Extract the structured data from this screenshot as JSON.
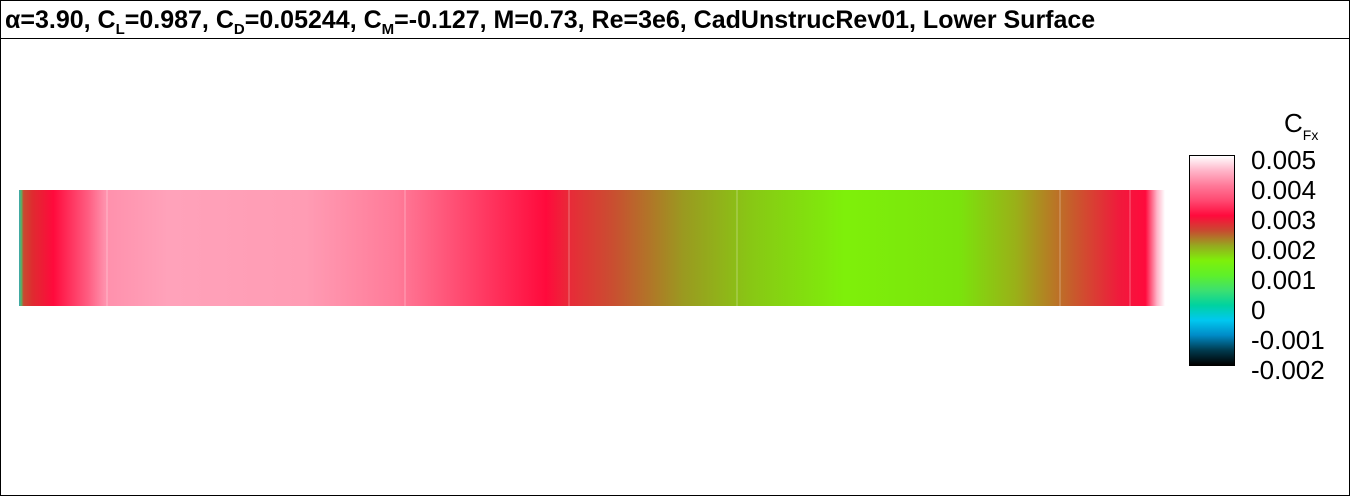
{
  "title": {
    "alpha_symbol": "α",
    "alpha_value": "=3.90, ",
    "cl_main": "C",
    "cl_sub": "L",
    "cl_value": "=0.987, ",
    "cd_main": "C",
    "cd_sub": "D",
    "cd_value": "=0.05244, ",
    "cm_main": "C",
    "cm_sub": "M",
    "cm_value": "=-0.127, M=0.73, Re=3e6, CadUnstrucRev01, Lower Surface"
  },
  "legend": {
    "title_main": "C",
    "title_sub": "Fx",
    "ticks": [
      "0.005",
      "0.004",
      "0.003",
      "0.002",
      "0.001",
      "0",
      "-0.001",
      "-0.002"
    ]
  },
  "colormap": {
    "stops": [
      {
        "value": -0.002,
        "color": "#000000"
      },
      {
        "value": -0.0015,
        "color": "#003c50"
      },
      {
        "value": -0.001,
        "color": "#008cc8"
      },
      {
        "value": -0.0005,
        "color": "#00c8f0"
      },
      {
        "value": 0.0,
        "color": "#00d2a0"
      },
      {
        "value": 0.0005,
        "color": "#3ce070"
      },
      {
        "value": 0.001,
        "color": "#5ef02a"
      },
      {
        "value": 0.0015,
        "color": "#7ef00a"
      },
      {
        "value": 0.002,
        "color": "#96a820"
      },
      {
        "value": 0.0025,
        "color": "#c84a30"
      },
      {
        "value": 0.003,
        "color": "#ff0a3c"
      },
      {
        "value": 0.0035,
        "color": "#ff4870"
      },
      {
        "value": 0.004,
        "color": "#ff7898"
      },
      {
        "value": 0.0045,
        "color": "#ffb4c8"
      },
      {
        "value": 0.005,
        "color": "#ffffff"
      }
    ]
  }
}
